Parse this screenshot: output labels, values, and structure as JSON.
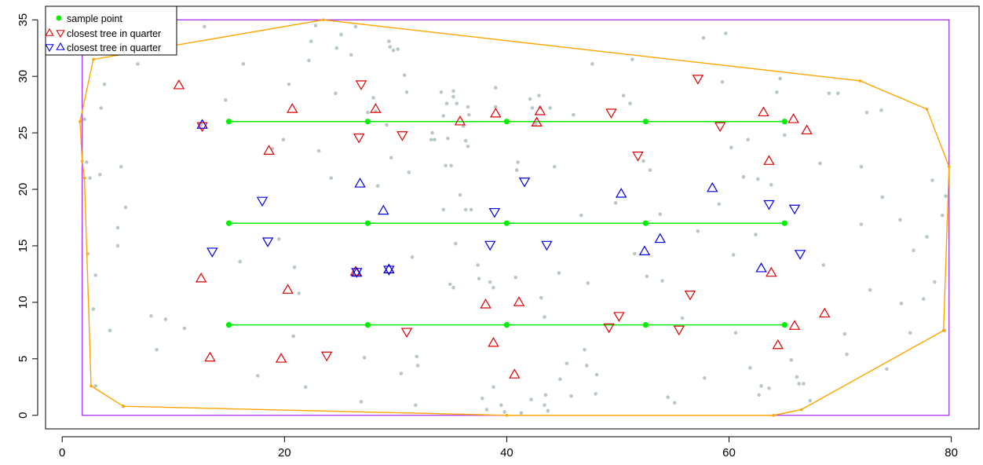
{
  "chart_data": {
    "type": "scatter",
    "title": "",
    "xlabel": "",
    "ylabel": "",
    "xlim": [
      -1.5,
      82.5
    ],
    "ylim": [
      -1.2,
      36.2
    ],
    "x_ticks": [
      0,
      20,
      40,
      60,
      80
    ],
    "y_ticks": [
      0,
      5,
      10,
      15,
      20,
      25,
      30,
      35
    ],
    "grid": false,
    "legend_position": "top-left",
    "colors": {
      "background_points": "#b8c8c4",
      "sample": "#00ee00",
      "tree_red": "#dd0000",
      "tree_blue": "#0000dd",
      "boundary_rect": "#a020f0",
      "hull": "#ffa500"
    },
    "legend": [
      {
        "label": "sample point",
        "symbols": [
          "filled-circle"
        ],
        "colors": [
          "#00ee00"
        ]
      },
      {
        "label": "closest tree in quarter",
        "symbols": [
          "triangle-up",
          "triangle-down"
        ],
        "colors": [
          "#dd0000",
          "#dd0000"
        ]
      },
      {
        "label": "closest tree in quarter",
        "symbols": [
          "triangle-down",
          "triangle-up"
        ],
        "colors": [
          "#0000dd",
          "#0000dd"
        ]
      }
    ],
    "rect": {
      "x0": 1.8,
      "y0": 0,
      "x1": 79.8,
      "y1": 35
    },
    "hull": [
      [
        1.6,
        26
      ],
      [
        1.8,
        22.5
      ],
      [
        2,
        21
      ],
      [
        2.6,
        2.6
      ],
      [
        5.5,
        0.8
      ],
      [
        40,
        0
      ],
      [
        64,
        0
      ],
      [
        66.5,
        0.5
      ],
      [
        79.3,
        7.5
      ],
      [
        79.8,
        22
      ],
      [
        77.8,
        27.1
      ],
      [
        71.8,
        29.6
      ],
      [
        23.5,
        35
      ],
      [
        2.8,
        31.5
      ],
      [
        1.6,
        26
      ]
    ],
    "transects": [
      {
        "y": 8,
        "x": [
          15,
          27.5,
          40,
          52.5,
          65
        ]
      },
      {
        "y": 17,
        "x": [
          15,
          27.5,
          40,
          52.5,
          65
        ]
      },
      {
        "y": 26,
        "x": [
          15,
          27.5,
          40,
          52.5,
          65
        ]
      }
    ],
    "red_up": [
      [
        10.5,
        29.2
      ],
      [
        12.5,
        12.1
      ],
      [
        13.3,
        5.1
      ],
      [
        20.7,
        27.1
      ],
      [
        20.3,
        11.1
      ],
      [
        18.6,
        23.4
      ],
      [
        19.7,
        5
      ],
      [
        28.2,
        27.1
      ],
      [
        29.4,
        12.9
      ],
      [
        26.4,
        12.7
      ],
      [
        35.8,
        26
      ],
      [
        38.1,
        9.8
      ],
      [
        39.0,
        26.7
      ],
      [
        38.8,
        6.4
      ],
      [
        43.0,
        26.9
      ],
      [
        42.7,
        25.9
      ],
      [
        41.1,
        10
      ],
      [
        40.7,
        3.6
      ],
      [
        63.1,
        26.8
      ],
      [
        63.6,
        22.5
      ],
      [
        63.8,
        12.6
      ],
      [
        65.8,
        26.2
      ],
      [
        65.9,
        7.9
      ],
      [
        64.4,
        6.2
      ],
      [
        67.0,
        25.2
      ],
      [
        68.6,
        9
      ]
    ],
    "red_down": [
      [
        12.6,
        25.6
      ],
      [
        26.9,
        29.3
      ],
      [
        26.7,
        24.6
      ],
      [
        30.6,
        24.8
      ],
      [
        23.8,
        5.3
      ],
      [
        31.0,
        7.4
      ],
      [
        49.4,
        26.8
      ],
      [
        51.8,
        23
      ],
      [
        50.1,
        8.8
      ],
      [
        49.2,
        7.8
      ],
      [
        57.2,
        29.8
      ],
      [
        59.2,
        25.6
      ],
      [
        56.5,
        10.7
      ],
      [
        55.5,
        7.6
      ]
    ],
    "blue_up": [
      [
        12.6,
        25.7
      ],
      [
        26.8,
        20.5
      ],
      [
        28.9,
        18.1
      ],
      [
        26.5,
        12.6
      ],
      [
        29.4,
        12.9
      ],
      [
        50.3,
        19.6
      ],
      [
        53.8,
        15.6
      ],
      [
        52.4,
        14.5
      ],
      [
        58.5,
        20.1
      ],
      [
        62.9,
        13
      ]
    ],
    "blue_down": [
      [
        18.0,
        19
      ],
      [
        18.5,
        15.4
      ],
      [
        13.5,
        14.5
      ],
      [
        26.5,
        12.7
      ],
      [
        29.4,
        12.9
      ],
      [
        38.9,
        18
      ],
      [
        38.5,
        15.1
      ],
      [
        41.6,
        20.7
      ],
      [
        43.6,
        15.1
      ],
      [
        63.6,
        18.7
      ],
      [
        65.9,
        18.3
      ],
      [
        66.4,
        14.3
      ]
    ],
    "background_points": [
      [
        2,
        26.2
      ],
      [
        2.2,
        22.4
      ],
      [
        2.5,
        21
      ],
      [
        3,
        2.6
      ],
      [
        2.8,
        9.4
      ],
      [
        3,
        12.4
      ],
      [
        2.3,
        14.3
      ],
      [
        3.4,
        21.3
      ],
      [
        3.5,
        27.2
      ],
      [
        3.8,
        29.3
      ],
      [
        4.3,
        7.5
      ],
      [
        5,
        15
      ],
      [
        5,
        16.6
      ],
      [
        5.3,
        22
      ],
      [
        5.7,
        18.4
      ],
      [
        5.5,
        0.8
      ],
      [
        6.8,
        31.1
      ],
      [
        8,
        8.8
      ],
      [
        8.5,
        5.8
      ],
      [
        9.3,
        8.5
      ],
      [
        11,
        7.7
      ],
      [
        12.5,
        25.7
      ],
      [
        16,
        13.6
      ],
      [
        19.5,
        15.6
      ],
      [
        19.9,
        24.4
      ],
      [
        20.4,
        29.3
      ],
      [
        20.9,
        13.1
      ],
      [
        20.8,
        7
      ],
      [
        21.3,
        10.8
      ],
      [
        22.2,
        31.4
      ],
      [
        22.4,
        33.1
      ],
      [
        23.1,
        23.4
      ],
      [
        24.2,
        21
      ],
      [
        24.7,
        32.5
      ],
      [
        26,
        31.9
      ],
      [
        26.4,
        34.4
      ],
      [
        27.2,
        5.1
      ],
      [
        27.5,
        26.8
      ],
      [
        28,
        28.1
      ],
      [
        28.2,
        26.9
      ],
      [
        28.4,
        20.3
      ],
      [
        29.2,
        25.7
      ],
      [
        29.4,
        33.1
      ],
      [
        29.5,
        32.6
      ],
      [
        29.6,
        22.8
      ],
      [
        29.8,
        32.3
      ],
      [
        30.2,
        32.4
      ],
      [
        30.8,
        30.1
      ],
      [
        31,
        28.6
      ],
      [
        31.2,
        21.5
      ],
      [
        31.5,
        14
      ],
      [
        31.8,
        0.9
      ],
      [
        32,
        4.4
      ],
      [
        31.9,
        5.2
      ],
      [
        33.3,
        25
      ],
      [
        33.5,
        24.4
      ],
      [
        34.1,
        28.6
      ],
      [
        34.3,
        26.5
      ],
      [
        34.6,
        27.6
      ],
      [
        34.5,
        22.1
      ],
      [
        34.7,
        24.5
      ],
      [
        34.3,
        18.2
      ],
      [
        35.2,
        28.7
      ],
      [
        35.2,
        28.2
      ],
      [
        35.0,
        22.1
      ],
      [
        34.9,
        11.6
      ],
      [
        35.2,
        11.3
      ],
      [
        35.4,
        15.2
      ],
      [
        35.8,
        19.5
      ],
      [
        35.5,
        27.6
      ],
      [
        36.1,
        25.6
      ],
      [
        36.3,
        24.3
      ],
      [
        36.5,
        23.8
      ],
      [
        36.3,
        18.2
      ],
      [
        36.8,
        18.2
      ],
      [
        36.5,
        27.3
      ],
      [
        36.6,
        26.6
      ],
      [
        37.4,
        13.3
      ],
      [
        37.5,
        12.1
      ],
      [
        37.8,
        1.5
      ],
      [
        38.2,
        0.5
      ],
      [
        38.5,
        11.8
      ],
      [
        38.8,
        11.3
      ],
      [
        39,
        29
      ],
      [
        39,
        27.3
      ],
      [
        38.8,
        2.5
      ],
      [
        39.5,
        0.9
      ],
      [
        39.8,
        0.3
      ],
      [
        41,
        22.4
      ],
      [
        40.9,
        21.7
      ],
      [
        40.8,
        12.2
      ],
      [
        41.3,
        0.2
      ],
      [
        42.1,
        28
      ],
      [
        42.3,
        27.2
      ],
      [
        42.2,
        1.4
      ],
      [
        42.6,
        25.8
      ],
      [
        42.9,
        28.3
      ],
      [
        43,
        27.2
      ],
      [
        43.1,
        10.4
      ],
      [
        43.4,
        8.7
      ],
      [
        43.9,
        27.2
      ],
      [
        43.5,
        1.8
      ],
      [
        43.7,
        0.4
      ],
      [
        43.4,
        0.9
      ],
      [
        44.3,
        22
      ],
      [
        44.7,
        12.6
      ],
      [
        44.8,
        3.2
      ],
      [
        45.4,
        4.6
      ],
      [
        45.8,
        1.7
      ],
      [
        46,
        26.6
      ],
      [
        46.7,
        17.7
      ],
      [
        47.0,
        5.8
      ],
      [
        47.3,
        11.7
      ],
      [
        47.2,
        4.4
      ],
      [
        48.1,
        3.6
      ],
      [
        48,
        1.9
      ],
      [
        49.8,
        18.8
      ],
      [
        50.5,
        28.3
      ],
      [
        51.1,
        27.6
      ],
      [
        51.5,
        14.3
      ],
      [
        52.3,
        22.5
      ],
      [
        52.6,
        12.3
      ],
      [
        52.9,
        21.7
      ],
      [
        53.8,
        17.8
      ],
      [
        54.0,
        11.9
      ],
      [
        54.5,
        1.6
      ],
      [
        55.1,
        1.1
      ],
      [
        55.8,
        8.6
      ],
      [
        57.2,
        16.3
      ],
      [
        57.8,
        3.3
      ],
      [
        59.1,
        18.7
      ],
      [
        59.4,
        29.5
      ],
      [
        60.2,
        23.7
      ],
      [
        60.4,
        14.2
      ],
      [
        60.6,
        7.3
      ],
      [
        61.3,
        21.1
      ],
      [
        61.7,
        24.4
      ],
      [
        61.9,
        4.2
      ],
      [
        62.4,
        16
      ],
      [
        62.6,
        20.9
      ],
      [
        62.9,
        2.6
      ],
      [
        62.7,
        1.8
      ],
      [
        63.6,
        2.4
      ],
      [
        63.8,
        20.4
      ],
      [
        64.3,
        28.6
      ],
      [
        64.6,
        29.8
      ],
      [
        65.0,
        24.8
      ],
      [
        65.6,
        4.9
      ],
      [
        66.1,
        3.4
      ],
      [
        66.3,
        2.8
      ],
      [
        66.7,
        2.8
      ],
      [
        67.3,
        1.3
      ],
      [
        68.2,
        22.3
      ],
      [
        68.5,
        13.3
      ],
      [
        69.0,
        28.5
      ],
      [
        69.8,
        28.5
      ],
      [
        70.4,
        7.2
      ],
      [
        70.6,
        5.4
      ],
      [
        71.9,
        22
      ],
      [
        71.9,
        16.9
      ],
      [
        72.4,
        26.8
      ],
      [
        72.7,
        11.1
      ],
      [
        73.7,
        27
      ],
      [
        73.8,
        19.3
      ],
      [
        74.2,
        4.1
      ],
      [
        75.4,
        17.3
      ],
      [
        75.5,
        9.9
      ],
      [
        76.3,
        7.3
      ],
      [
        76.6,
        14.6
      ],
      [
        77.5,
        10.3
      ],
      [
        77.8,
        15.8
      ],
      [
        78.3,
        20.8
      ],
      [
        78.5,
        11.8
      ],
      [
        79.2,
        17.7
      ],
      [
        79.5,
        19.4
      ],
      [
        79.4,
        7.5
      ],
      [
        17.6,
        3.5
      ],
      [
        18.9,
        23.6
      ],
      [
        22.8,
        34.5
      ],
      [
        25.1,
        33.7
      ],
      [
        14.7,
        27.9
      ],
      [
        16.3,
        31.1
      ],
      [
        12.8,
        34.4
      ],
      [
        57.7,
        33.4
      ],
      [
        59.7,
        33.8
      ],
      [
        47.7,
        31.1
      ],
      [
        51.3,
        31.5
      ],
      [
        33.2,
        24.4
      ],
      [
        24.6,
        28.5
      ],
      [
        30.5,
        3.7
      ],
      [
        26.9,
        1.2
      ],
      [
        21.9,
        2.5
      ]
    ]
  }
}
